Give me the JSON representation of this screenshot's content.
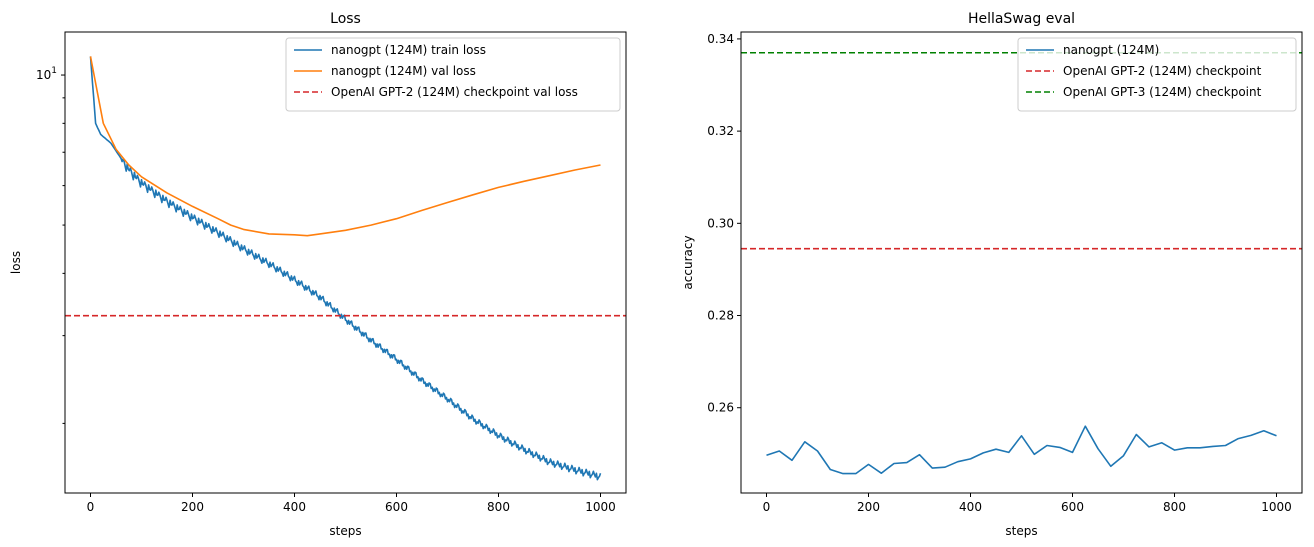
{
  "chart_data": [
    {
      "type": "line",
      "title": "Loss",
      "xlabel": "steps",
      "ylabel": "loss",
      "yscale": "log",
      "xlim": [
        -50,
        1050
      ],
      "ylim": [
        1.45,
        12.2
      ],
      "xticks": [
        0,
        200,
        400,
        600,
        800,
        1000
      ],
      "yticks": [
        {
          "value": 10,
          "label": "10",
          "sup": "1"
        }
      ],
      "grid": false,
      "legend_position": "top-right",
      "series": [
        {
          "name": "nanogpt (124M) train loss",
          "color": "#1f77b4",
          "style": "solid",
          "x": [
            0,
            10,
            20,
            40,
            60,
            80,
            100,
            150,
            200,
            250,
            300,
            350,
            400,
            450,
            500,
            550,
            600,
            650,
            700,
            750,
            800,
            850,
            900,
            950,
            1000
          ],
          "y": [
            10.9,
            8.0,
            7.6,
            7.3,
            6.8,
            6.4,
            6.1,
            5.6,
            5.2,
            4.85,
            4.5,
            4.2,
            3.9,
            3.6,
            3.25,
            2.95,
            2.7,
            2.45,
            2.25,
            2.05,
            1.9,
            1.78,
            1.68,
            1.62,
            1.57
          ]
        },
        {
          "name": "nanogpt (124M) val loss",
          "color": "#ff7f0e",
          "style": "solid",
          "x": [
            0,
            25,
            50,
            75,
            100,
            150,
            200,
            250,
            275,
            300,
            350,
            400,
            425,
            450,
            500,
            550,
            600,
            650,
            700,
            750,
            800,
            850,
            900,
            950,
            1000
          ],
          "y": [
            10.9,
            8.0,
            7.1,
            6.6,
            6.25,
            5.8,
            5.45,
            5.15,
            5.0,
            4.9,
            4.8,
            4.78,
            4.76,
            4.8,
            4.88,
            5.0,
            5.15,
            5.35,
            5.55,
            5.75,
            5.95,
            6.12,
            6.28,
            6.45,
            6.6
          ]
        },
        {
          "name": "OpenAI GPT-2 (124M) checkpoint val loss",
          "color": "#d62728",
          "style": "dashed",
          "hline": 3.29
        }
      ]
    },
    {
      "type": "line",
      "title": "HellaSwag eval",
      "xlabel": "steps",
      "ylabel": "accuracy",
      "xlim": [
        -50,
        1050
      ],
      "ylim": [
        0.2415,
        0.3415
      ],
      "xticks": [
        0,
        200,
        400,
        600,
        800,
        1000
      ],
      "yticks": [
        0.26,
        0.28,
        0.3,
        0.32,
        0.34
      ],
      "ytick_labels": [
        "0.26",
        "0.28",
        "0.30",
        "0.32",
        "0.34"
      ],
      "grid": false,
      "legend_position": "top-right",
      "series": [
        {
          "name": "nanogpt (124M)",
          "color": "#1f77b4",
          "style": "solid",
          "x": [
            0,
            25,
            50,
            75,
            100,
            125,
            150,
            175,
            200,
            225,
            250,
            275,
            300,
            325,
            350,
            375,
            400,
            425,
            450,
            475,
            500,
            525,
            550,
            575,
            600,
            625,
            650,
            675,
            700,
            725,
            750,
            775,
            800,
            825,
            850,
            875,
            900,
            925,
            950,
            975,
            1000
          ],
          "y": [
            0.2497,
            0.2506,
            0.2486,
            0.2526,
            0.2506,
            0.2466,
            0.2457,
            0.2457,
            0.2477,
            0.2458,
            0.2479,
            0.2481,
            0.2498,
            0.2469,
            0.2471,
            0.2483,
            0.2489,
            0.2502,
            0.251,
            0.2503,
            0.2539,
            0.2499,
            0.2518,
            0.2514,
            0.2503,
            0.256,
            0.2511,
            0.2473,
            0.2496,
            0.2542,
            0.2515,
            0.2524,
            0.2508,
            0.2513,
            0.2513,
            0.2516,
            0.2518,
            0.2533,
            0.254,
            0.255,
            0.2539
          ]
        },
        {
          "name": "OpenAI GPT-2 (124M) checkpoint",
          "color": "#d62728",
          "style": "dashed",
          "hline": 0.2945
        },
        {
          "name": "OpenAI GPT-3 (124M) checkpoint",
          "color": "#008000",
          "style": "dashed",
          "hline": 0.337
        }
      ]
    }
  ]
}
